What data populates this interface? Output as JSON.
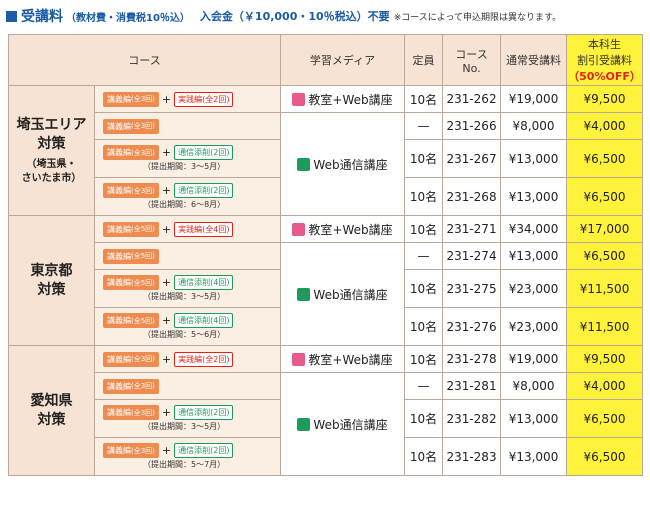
{
  "header": {
    "title": "受講料",
    "note1": "（教材費・消費税10％込）",
    "entry_fee": "入会金（￥10,000・10％税込）不要",
    "note2": "※コースによって申込期限は異なります。"
  },
  "columns": {
    "course": "コース",
    "media": "学習メディア",
    "capacity": "定員",
    "course_no_line1": "コース",
    "course_no_line2": "No.",
    "regular": "通常受講料",
    "student_line1": "本科生",
    "student_line2": "割引受講料",
    "student_line3": "（50%OFF）"
  },
  "labels": {
    "plus": "+",
    "media_classroom": "教室+Web講座",
    "media_web": "Web通信講座"
  },
  "regions": [
    {
      "name_line1": "埼玉エリア",
      "name_line2": "対策",
      "sub_line1": "（埼玉県・",
      "sub_line2": "さいたま市）",
      "rows": [
        {
          "lecture": "講義編",
          "lecture_count": "(全3回)",
          "extra": "実践編",
          "extra_count": "(全2回)",
          "extra_type": "prac",
          "period": "",
          "capacity": "10名",
          "no": "231-262",
          "regular": "¥19,000",
          "discount": "¥9,500"
        },
        {
          "lecture": "講義編",
          "lecture_count": "(全3回)",
          "extra": "",
          "extra_count": "",
          "extra_type": "",
          "period": "",
          "capacity": "—",
          "no": "231-266",
          "regular": "¥8,000",
          "discount": "¥4,000"
        },
        {
          "lecture": "講義編",
          "lecture_count": "(全3回)",
          "extra": "通信添削",
          "extra_count": "(2回)",
          "extra_type": "corr",
          "period": "（提出期間：3～5月）",
          "capacity": "10名",
          "no": "231-267",
          "regular": "¥13,000",
          "discount": "¥6,500"
        },
        {
          "lecture": "講義編",
          "lecture_count": "(全3回)",
          "extra": "通信添削",
          "extra_count": "(2回)",
          "extra_type": "corr",
          "period": "（提出期間：6～8月）",
          "capacity": "10名",
          "no": "231-268",
          "regular": "¥13,000",
          "discount": "¥6,500"
        }
      ]
    },
    {
      "name_line1": "東京都",
      "name_line2": "対策",
      "sub_line1": "",
      "sub_line2": "",
      "rows": [
        {
          "lecture": "講義編",
          "lecture_count": "(全5回)",
          "extra": "実践編",
          "extra_count": "(全4回)",
          "extra_type": "prac",
          "period": "",
          "capacity": "10名",
          "no": "231-271",
          "regular": "¥34,000",
          "discount": "¥17,000"
        },
        {
          "lecture": "講義編",
          "lecture_count": "(全5回)",
          "extra": "",
          "extra_count": "",
          "extra_type": "",
          "period": "",
          "capacity": "—",
          "no": "231-274",
          "regular": "¥13,000",
          "discount": "¥6,500"
        },
        {
          "lecture": "講義編",
          "lecture_count": "(全5回)",
          "extra": "通信添削",
          "extra_count": "(4回)",
          "extra_type": "corr",
          "period": "（提出期間：3～5月）",
          "capacity": "10名",
          "no": "231-275",
          "regular": "¥23,000",
          "discount": "¥11,500"
        },
        {
          "lecture": "講義編",
          "lecture_count": "(全5回)",
          "extra": "通信添削",
          "extra_count": "(4回)",
          "extra_type": "corr",
          "period": "（提出期間：5～6月）",
          "capacity": "10名",
          "no": "231-276",
          "regular": "¥23,000",
          "discount": "¥11,500"
        }
      ]
    },
    {
      "name_line1": "愛知県",
      "name_line2": "対策",
      "sub_line1": "",
      "sub_line2": "",
      "rows": [
        {
          "lecture": "講義編",
          "lecture_count": "(全3回)",
          "extra": "実践編",
          "extra_count": "(全2回)",
          "extra_type": "prac",
          "period": "",
          "capacity": "10名",
          "no": "231-278",
          "regular": "¥19,000",
          "discount": "¥9,500"
        },
        {
          "lecture": "講義編",
          "lecture_count": "(全3回)",
          "extra": "",
          "extra_count": "",
          "extra_type": "",
          "period": "",
          "capacity": "—",
          "no": "231-281",
          "regular": "¥8,000",
          "discount": "¥4,000"
        },
        {
          "lecture": "講義編",
          "lecture_count": "(全3回)",
          "extra": "通信添削",
          "extra_count": "(2回)",
          "extra_type": "corr",
          "period": "（提出期間：3～5月）",
          "capacity": "10名",
          "no": "231-282",
          "regular": "¥13,000",
          "discount": "¥6,500"
        },
        {
          "lecture": "講義編",
          "lecture_count": "(全3回)",
          "extra": "通信添削",
          "extra_count": "(2回)",
          "extra_type": "corr",
          "period": "（提出期間：5～7月）",
          "capacity": "10名",
          "no": "231-283",
          "regular": "¥13,000",
          "discount": "¥6,500"
        }
      ]
    }
  ]
}
